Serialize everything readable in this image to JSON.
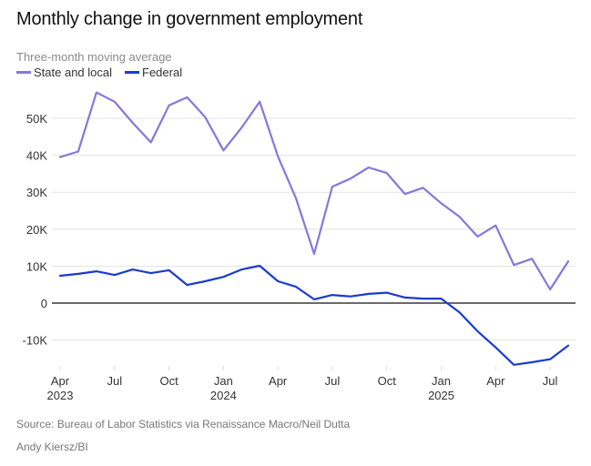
{
  "chart_data": {
    "type": "line",
    "title": "Monthly change in government employment",
    "subtitle": "Three-month moving average",
    "xlabel": "",
    "ylabel": "",
    "ylim": [
      -17000,
      58000
    ],
    "y_ticks": [
      {
        "value": 50000,
        "label": "50K"
      },
      {
        "value": 40000,
        "label": "40K"
      },
      {
        "value": 30000,
        "label": "30K"
      },
      {
        "value": 20000,
        "label": "20K"
      },
      {
        "value": 10000,
        "label": "10K"
      },
      {
        "value": 0,
        "label": "0"
      },
      {
        "value": -10000,
        "label": "-10K"
      }
    ],
    "x": [
      "2023-04",
      "2023-05",
      "2023-06",
      "2023-07",
      "2023-08",
      "2023-09",
      "2023-10",
      "2023-11",
      "2023-12",
      "2024-01",
      "2024-02",
      "2024-03",
      "2024-04",
      "2024-05",
      "2024-06",
      "2024-07",
      "2024-08",
      "2024-09",
      "2024-10",
      "2024-11",
      "2024-12",
      "2025-01",
      "2025-02",
      "2025-03",
      "2025-04",
      "2025-05",
      "2025-06",
      "2025-07",
      "2025-08"
    ],
    "x_ticks": [
      {
        "index": 0,
        "label": "Apr",
        "year": "2023"
      },
      {
        "index": 3,
        "label": "Jul",
        "year": ""
      },
      {
        "index": 6,
        "label": "Oct",
        "year": ""
      },
      {
        "index": 9,
        "label": "Jan",
        "year": "2024"
      },
      {
        "index": 12,
        "label": "Apr",
        "year": ""
      },
      {
        "index": 15,
        "label": "Jul",
        "year": ""
      },
      {
        "index": 18,
        "label": "Oct",
        "year": ""
      },
      {
        "index": 21,
        "label": "Jan",
        "year": "2025"
      },
      {
        "index": 24,
        "label": "Apr",
        "year": ""
      },
      {
        "index": 27,
        "label": "Jul",
        "year": ""
      }
    ],
    "series": [
      {
        "name": "State and local",
        "color": "#8577dd",
        "values": [
          39500,
          41000,
          57000,
          54500,
          48800,
          43500,
          53500,
          55700,
          50300,
          41300,
          47500,
          54500,
          39700,
          28300,
          13300,
          31500,
          33700,
          36700,
          35200,
          29500,
          31200,
          27000,
          23400,
          18000,
          21000,
          10300,
          12000,
          3700,
          11300
        ]
      },
      {
        "name": "Federal",
        "color": "#1a3bcf",
        "values": [
          7400,
          7900,
          8600,
          7600,
          9100,
          8100,
          8900,
          4900,
          5900,
          7100,
          9100,
          10100,
          5900,
          4400,
          1000,
          2200,
          1800,
          2500,
          2800,
          1500,
          1200,
          1200,
          -2500,
          -7600,
          -12000,
          -16700,
          -16000,
          -15200,
          -11500
        ]
      }
    ],
    "grid": true,
    "legend": "top-left"
  },
  "footer": {
    "source": "Source: Bureau of Labor Statistics via Renaissance Macro/Neil Dutta",
    "credit": "Andy Kiersz/BI"
  }
}
